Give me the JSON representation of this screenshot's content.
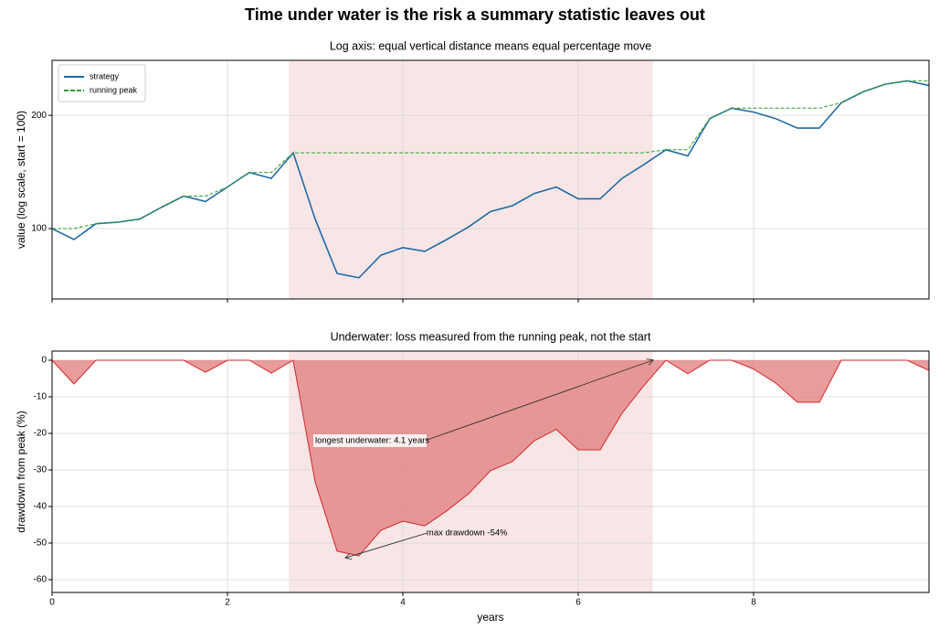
{
  "title": "Time under water is the risk a summary statistic leaves out",
  "chart_data": [
    {
      "type": "line",
      "title": "Log axis: equal vertical distance means equal percentage move",
      "y_label": "value (log scale, start = 100)",
      "yscale": "log",
      "grid": true,
      "legend": "upper left",
      "x": [
        0,
        0.25,
        0.5,
        0.75,
        1,
        1.25,
        1.5,
        1.75,
        2,
        2.25,
        2.5,
        2.75,
        3,
        3.25,
        3.5,
        3.75,
        4,
        4.25,
        4.5,
        4.75,
        5,
        5.25,
        5.5,
        5.75,
        6,
        6.25,
        6.5,
        6.75,
        7,
        7.25,
        7.5,
        7.75,
        8,
        8.25,
        8.5,
        8.75,
        9,
        9.25,
        9.5,
        9.75,
        10
      ],
      "xlim": [
        0,
        10
      ],
      "xticks": [
        0,
        2,
        4,
        6,
        8
      ],
      "ylim": [
        65,
        280
      ],
      "yticks": [
        100,
        200
      ],
      "shade": [
        2.7,
        6.85
      ],
      "shade_color": "#f8e6e6",
      "series": [
        {
          "name": "strategy",
          "color": "#1f6aa5",
          "style": "solid",
          "values": [
            100,
            93.5,
            103,
            104,
            106,
            114,
            122,
            118,
            129,
            141,
            136,
            159,
            106,
            76,
            74,
            85,
            89,
            87,
            93.5,
            101,
            111,
            115,
            124,
            129,
            120,
            120,
            136,
            148,
            162,
            156,
            196,
            209,
            204,
            196,
            185,
            185,
            216,
            231,
            242,
            247,
            240
          ]
        },
        {
          "name": "running peak",
          "color": "#2ca02c",
          "style": "dashed",
          "values": [
            100,
            100,
            103,
            104,
            106,
            114,
            122,
            122,
            129,
            141,
            141,
            159,
            159,
            159,
            159,
            159,
            159,
            159,
            159,
            159,
            159,
            159,
            159,
            159,
            159,
            159,
            159,
            159,
            162,
            162,
            196,
            209,
            209,
            209,
            209,
            209,
            216,
            231,
            242,
            247,
            247
          ]
        }
      ]
    },
    {
      "type": "area",
      "title": "Underwater: loss measured from the running peak, not the start",
      "x_label": "years",
      "y_label": "drawdown from peak (%)",
      "grid": true,
      "x": [
        0,
        0.25,
        0.5,
        0.75,
        1,
        1.25,
        1.5,
        1.75,
        2,
        2.25,
        2.5,
        2.75,
        3,
        3.25,
        3.5,
        3.75,
        4,
        4.25,
        4.5,
        4.75,
        5,
        5.25,
        5.5,
        5.75,
        6,
        6.25,
        6.5,
        6.75,
        7,
        7.25,
        7.5,
        7.75,
        8,
        8.25,
        8.5,
        8.75,
        9,
        9.25,
        9.5,
        9.75,
        10
      ],
      "xlim": [
        0,
        10
      ],
      "xticks": [
        0,
        2,
        4,
        6,
        8
      ],
      "ylim": [
        -63.5,
        2.5
      ],
      "yticks": [
        0,
        -10,
        -20,
        -30,
        -40,
        -50,
        -60
      ],
      "shade": [
        2.7,
        6.85
      ],
      "shade_color": "#f8e6e6",
      "series": [
        {
          "name": "drawdown",
          "color": "#d62728",
          "fill": "#e07b7b",
          "values": [
            0,
            -6.5,
            0,
            0,
            0,
            0,
            0,
            -3.3,
            0,
            0,
            -3.5,
            0,
            -33.3,
            -52.2,
            -53.5,
            -46.5,
            -44.0,
            -45.3,
            -41.2,
            -36.5,
            -30.2,
            -27.7,
            -22.0,
            -18.9,
            -24.5,
            -24.5,
            -14.5,
            -6.9,
            0,
            -3.7,
            0,
            0,
            -2.4,
            -6.2,
            -11.5,
            -11.5,
            0,
            0,
            0,
            0,
            -2.8
          ]
        }
      ],
      "annotations": [
        {
          "text": "longest underwater: 4.1 years",
          "xy": [
            6.85,
            0
          ]
        },
        {
          "text": "max drawdown -54%",
          "xy": [
            3.35,
            -54
          ]
        }
      ]
    }
  ]
}
